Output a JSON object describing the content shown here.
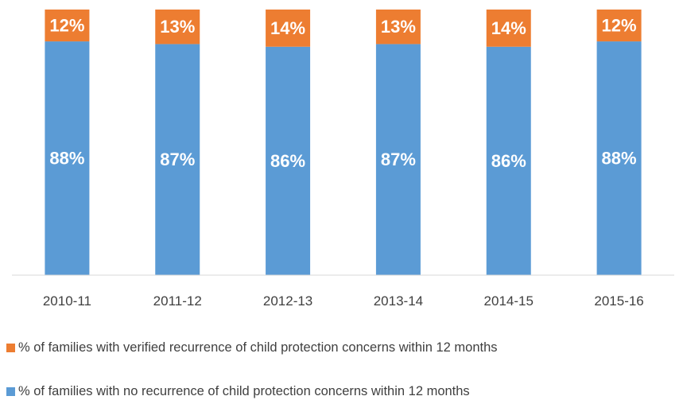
{
  "chart_data": {
    "type": "bar",
    "stacked": true,
    "categories": [
      "2010-11",
      "2011-12",
      "2012-13",
      "2013-14",
      "2014-15",
      "2015-16"
    ],
    "series": [
      {
        "name": "% of families with no recurrence of child protection concerns within 12 months",
        "values": [
          88,
          87,
          86,
          87,
          86,
          88
        ],
        "labels": [
          "88%",
          "87%",
          "86%",
          "87%",
          "86%",
          "88%"
        ],
        "color": "#5B9BD5"
      },
      {
        "name": "% of families with verified recurrence of child protection concerns within 12 months",
        "values": [
          12,
          13,
          14,
          13,
          14,
          12
        ],
        "labels": [
          "12%",
          "13%",
          "14%",
          "13%",
          "14%",
          "12%"
        ],
        "color": "#ED7D31"
      }
    ],
    "ylim": [
      0,
      100
    ],
    "grid": false,
    "legend_position": "bottom",
    "title": "",
    "xlabel": "",
    "ylabel": ""
  }
}
